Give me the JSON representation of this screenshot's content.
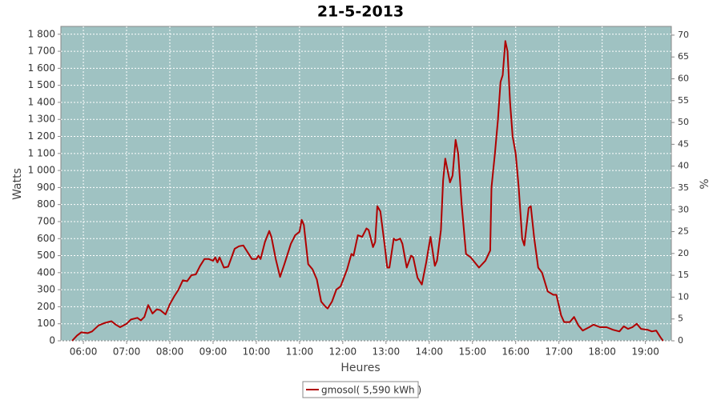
{
  "chart_data": {
    "type": "line",
    "title": "21-5-2013",
    "x_label": "Heures",
    "y_label": "Watts",
    "y2_label": "%",
    "xlim": [
      5.48,
      19.6
    ],
    "xticks": [
      {
        "value": 6,
        "label": "06:00"
      },
      {
        "value": 7,
        "label": "07:00"
      },
      {
        "value": 8,
        "label": "08:00"
      },
      {
        "value": 9,
        "label": "09:00"
      },
      {
        "value": 10,
        "label": "10:00"
      },
      {
        "value": 11,
        "label": "11:00"
      },
      {
        "value": 12,
        "label": "12:00"
      },
      {
        "value": 13,
        "label": "13:00"
      },
      {
        "value": 14,
        "label": "14:00"
      },
      {
        "value": 15,
        "label": "15:00"
      },
      {
        "value": 16,
        "label": "16:00"
      },
      {
        "value": 17,
        "label": "17:00"
      },
      {
        "value": 18,
        "label": "18:00"
      },
      {
        "value": 19,
        "label": "19:00"
      }
    ],
    "ylim": [
      0,
      1846
    ],
    "yticks": [
      0,
      100,
      200,
      300,
      400,
      500,
      600,
      700,
      800,
      900,
      {
        "value": 1000,
        "label": "1 000"
      },
      {
        "value": 1100,
        "label": "1 100"
      },
      {
        "value": 1200,
        "label": "1 200"
      },
      {
        "value": 1300,
        "label": "1 300"
      },
      {
        "value": 1400,
        "label": "1 400"
      },
      {
        "value": 1500,
        "label": "1 500"
      },
      {
        "value": 1600,
        "label": "1 600"
      },
      {
        "value": 1700,
        "label": "1 700"
      },
      {
        "value": 1800,
        "label": "1 800"
      }
    ],
    "y2lim": [
      0,
      72
    ],
    "y2ticks": [
      0,
      5,
      10,
      15,
      20,
      25,
      30,
      35,
      40,
      45,
      50,
      55,
      60,
      65,
      70
    ],
    "grid": true,
    "background": "#9fc2c2",
    "x": [
      5.74,
      5.85,
      5.95,
      6.1,
      6.2,
      6.35,
      6.5,
      6.65,
      6.75,
      6.85,
      7.0,
      7.1,
      7.25,
      7.33,
      7.41,
      7.5,
      7.6,
      7.7,
      7.78,
      7.9,
      8.0,
      8.1,
      8.2,
      8.3,
      8.4,
      8.5,
      8.6,
      8.7,
      8.8,
      8.9,
      9.0,
      9.05,
      9.1,
      9.15,
      9.25,
      9.35,
      9.5,
      9.6,
      9.7,
      9.8,
      9.9,
      10.0,
      10.05,
      10.1,
      10.2,
      10.3,
      10.35,
      10.45,
      10.55,
      10.65,
      10.8,
      10.9,
      11.0,
      11.05,
      11.1,
      11.2,
      11.3,
      11.4,
      11.5,
      11.6,
      11.65,
      11.75,
      11.85,
      11.95,
      12.1,
      12.2,
      12.25,
      12.35,
      12.45,
      12.55,
      12.6,
      12.7,
      12.75,
      12.8,
      12.87,
      12.97,
      13.03,
      13.08,
      13.18,
      13.23,
      13.33,
      13.38,
      13.48,
      13.58,
      13.63,
      13.73,
      13.83,
      13.93,
      14.03,
      14.13,
      14.18,
      14.27,
      14.32,
      14.37,
      14.48,
      14.54,
      14.61,
      14.67,
      14.75,
      14.85,
      14.96,
      15.15,
      15.3,
      15.41,
      15.44,
      15.52,
      15.59,
      15.65,
      15.7,
      15.76,
      15.81,
      15.87,
      15.93,
      16.0,
      16.07,
      16.15,
      16.2,
      16.3,
      16.35,
      16.43,
      16.52,
      16.61,
      16.74,
      16.87,
      16.94,
      17.05,
      17.12,
      17.25,
      17.35,
      17.45,
      17.55,
      17.7,
      17.8,
      17.95,
      18.1,
      18.25,
      18.4,
      18.5,
      18.6,
      18.7,
      18.8,
      18.9,
      19.05,
      19.15,
      19.25,
      19.35,
      19.41
    ],
    "series": [
      {
        "name": "gmosol( 5,590 kWh )",
        "color": "#b00000",
        "values": [
          0,
          30,
          50,
          45,
          55,
          90,
          105,
          115,
          95,
          80,
          100,
          125,
          135,
          120,
          140,
          210,
          160,
          185,
          180,
          155,
          215,
          260,
          300,
          355,
          350,
          385,
          390,
          440,
          480,
          480,
          470,
          490,
          460,
          490,
          430,
          435,
          540,
          555,
          560,
          520,
          480,
          480,
          500,
          480,
          580,
          645,
          610,
          480,
          375,
          450,
          570,
          620,
          640,
          710,
          680,
          450,
          420,
          360,
          230,
          200,
          190,
          230,
          300,
          320,
          420,
          510,
          500,
          620,
          610,
          660,
          650,
          550,
          580,
          790,
          760,
          560,
          430,
          430,
          600,
          590,
          600,
          570,
          430,
          500,
          490,
          370,
          330,
          460,
          610,
          440,
          470,
          650,
          940,
          1070,
          930,
          970,
          1180,
          1100,
          800,
          510,
          490,
          430,
          470,
          530,
          900,
          1100,
          1300,
          1520,
          1560,
          1760,
          1700,
          1400,
          1200,
          1100,
          900,
          600,
          560,
          780,
          790,
          600,
          430,
          400,
          290,
          270,
          270,
          150,
          110,
          110,
          140,
          90,
          60,
          80,
          95,
          80,
          80,
          65,
          55,
          85,
          70,
          80,
          100,
          70,
          65,
          55,
          60,
          20,
          0
        ]
      }
    ]
  }
}
